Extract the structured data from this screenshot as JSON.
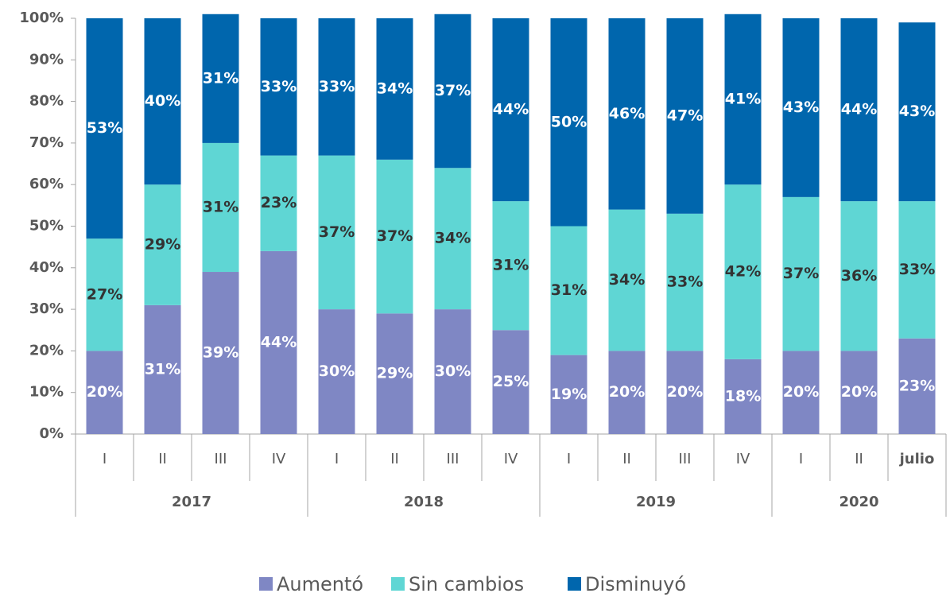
{
  "chart_data": {
    "type": "stacked_bar",
    "groups": [
      {
        "label": "2017",
        "categories": [
          "I",
          "II",
          "III",
          "IV"
        ]
      },
      {
        "label": "2018",
        "categories": [
          "I",
          "II",
          "III",
          "IV"
        ]
      },
      {
        "label": "2019",
        "categories": [
          "I",
          "II",
          "III",
          "IV"
        ]
      },
      {
        "label": "2020",
        "categories": [
          "I",
          "II",
          "julio"
        ]
      }
    ],
    "series": [
      {
        "name": "Aumentó",
        "color": "#7f87c4",
        "label_color": "#ffffff",
        "values": [
          20,
          31,
          39,
          44,
          30,
          29,
          30,
          25,
          19,
          20,
          20,
          18,
          20,
          20,
          23
        ],
        "value_labels": [
          "20%",
          "31%",
          "39%",
          "44%",
          "30%",
          "29%",
          "30%",
          "25%",
          "19%",
          "20%",
          "20%",
          "18%",
          "20%",
          "20%",
          "23%"
        ]
      },
      {
        "name": "Sin cambios",
        "color": "#5fd6d4",
        "label_color": "#333333",
        "values": [
          27,
          29,
          31,
          23,
          37,
          37,
          34,
          31,
          31,
          34,
          33,
          42,
          37,
          36,
          33
        ],
        "value_labels": [
          "27%",
          "29%",
          "31%",
          "23%",
          "37%",
          "37%",
          "34%",
          "31%",
          "31%",
          "34%",
          "33%",
          "42%",
          "37%",
          "36%",
          "33%"
        ]
      },
      {
        "name": "Disminuyó",
        "color": "#0066ad",
        "label_color": "#ffffff",
        "values": [
          53,
          40,
          31,
          33,
          33,
          34,
          37,
          44,
          50,
          46,
          47,
          41,
          43,
          44,
          43
        ],
        "value_labels": [
          "53%",
          "40%",
          "31%",
          "33%",
          "33%",
          "34%",
          "37%",
          "44%",
          "50%",
          "46%",
          "47%",
          "41%",
          "43%",
          "44%",
          "43%"
        ]
      }
    ],
    "ylim": [
      0,
      100
    ],
    "yticks": [
      {
        "value": 0,
        "label": "0%"
      },
      {
        "value": 10,
        "label": "10%"
      },
      {
        "value": 20,
        "label": "20%"
      },
      {
        "value": 30,
        "label": "30%"
      },
      {
        "value": 40,
        "label": "40%"
      },
      {
        "value": 50,
        "label": "50%"
      },
      {
        "value": 60,
        "label": "60%"
      },
      {
        "value": 70,
        "label": "70%"
      },
      {
        "value": 80,
        "label": "80%"
      },
      {
        "value": 90,
        "label": "90%"
      },
      {
        "value": 100,
        "label": "100%"
      }
    ],
    "legend": "bottom"
  }
}
